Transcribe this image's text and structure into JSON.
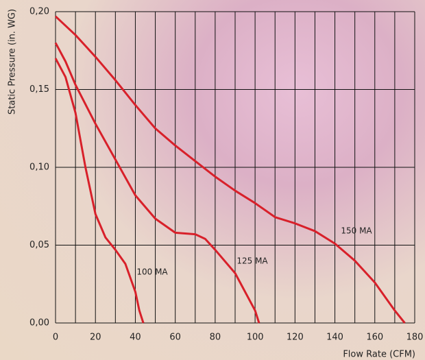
{
  "chart_data": {
    "type": "line",
    "x_label": "Flow Rate (CFM)",
    "y_label": "Static Pressure (in. WG)",
    "xlim": [
      0,
      180
    ],
    "ylim": [
      0,
      0.2
    ],
    "xticks": [
      0,
      20,
      40,
      60,
      80,
      100,
      120,
      140,
      160,
      180
    ],
    "x_minor_grid": [
      10,
      30,
      50,
      70,
      90,
      110,
      130,
      150,
      170
    ],
    "yticks": [
      {
        "value": 0,
        "label": "0,00"
      },
      {
        "value": 0.05,
        "label": "0,05"
      },
      {
        "value": 0.1,
        "label": "0,10"
      },
      {
        "value": 0.15,
        "label": "0,15"
      },
      {
        "value": 0.2,
        "label": "0,20"
      }
    ],
    "grid": true,
    "series": [
      {
        "name": "150 MA",
        "color": "#d8202a",
        "x": [
          0,
          10,
          20,
          30,
          40,
          50,
          60,
          70,
          80,
          90,
          100,
          110,
          120,
          130,
          140,
          150,
          160,
          170,
          175
        ],
        "values": [
          0.197,
          0.185,
          0.171,
          0.156,
          0.14,
          0.125,
          0.114,
          0.104,
          0.094,
          0.085,
          0.077,
          0.068,
          0.064,
          0.059,
          0.051,
          0.04,
          0.026,
          0.008,
          0
        ]
      },
      {
        "name": "125 MA",
        "color": "#d8202a",
        "x": [
          0,
          5,
          10,
          20,
          30,
          40,
          50,
          60,
          70,
          75,
          80,
          90,
          100,
          102
        ],
        "values": [
          0.18,
          0.168,
          0.153,
          0.128,
          0.105,
          0.082,
          0.067,
          0.058,
          0.057,
          0.054,
          0.047,
          0.032,
          0.008,
          0
        ]
      },
      {
        "name": "100 MA",
        "color": "#d8202a",
        "x": [
          0,
          5,
          10,
          15,
          20,
          25,
          30,
          35,
          40,
          42,
          44
        ],
        "values": [
          0.17,
          0.158,
          0.135,
          0.1,
          0.07,
          0.055,
          0.047,
          0.038,
          0.02,
          0.008,
          0
        ]
      }
    ]
  }
}
